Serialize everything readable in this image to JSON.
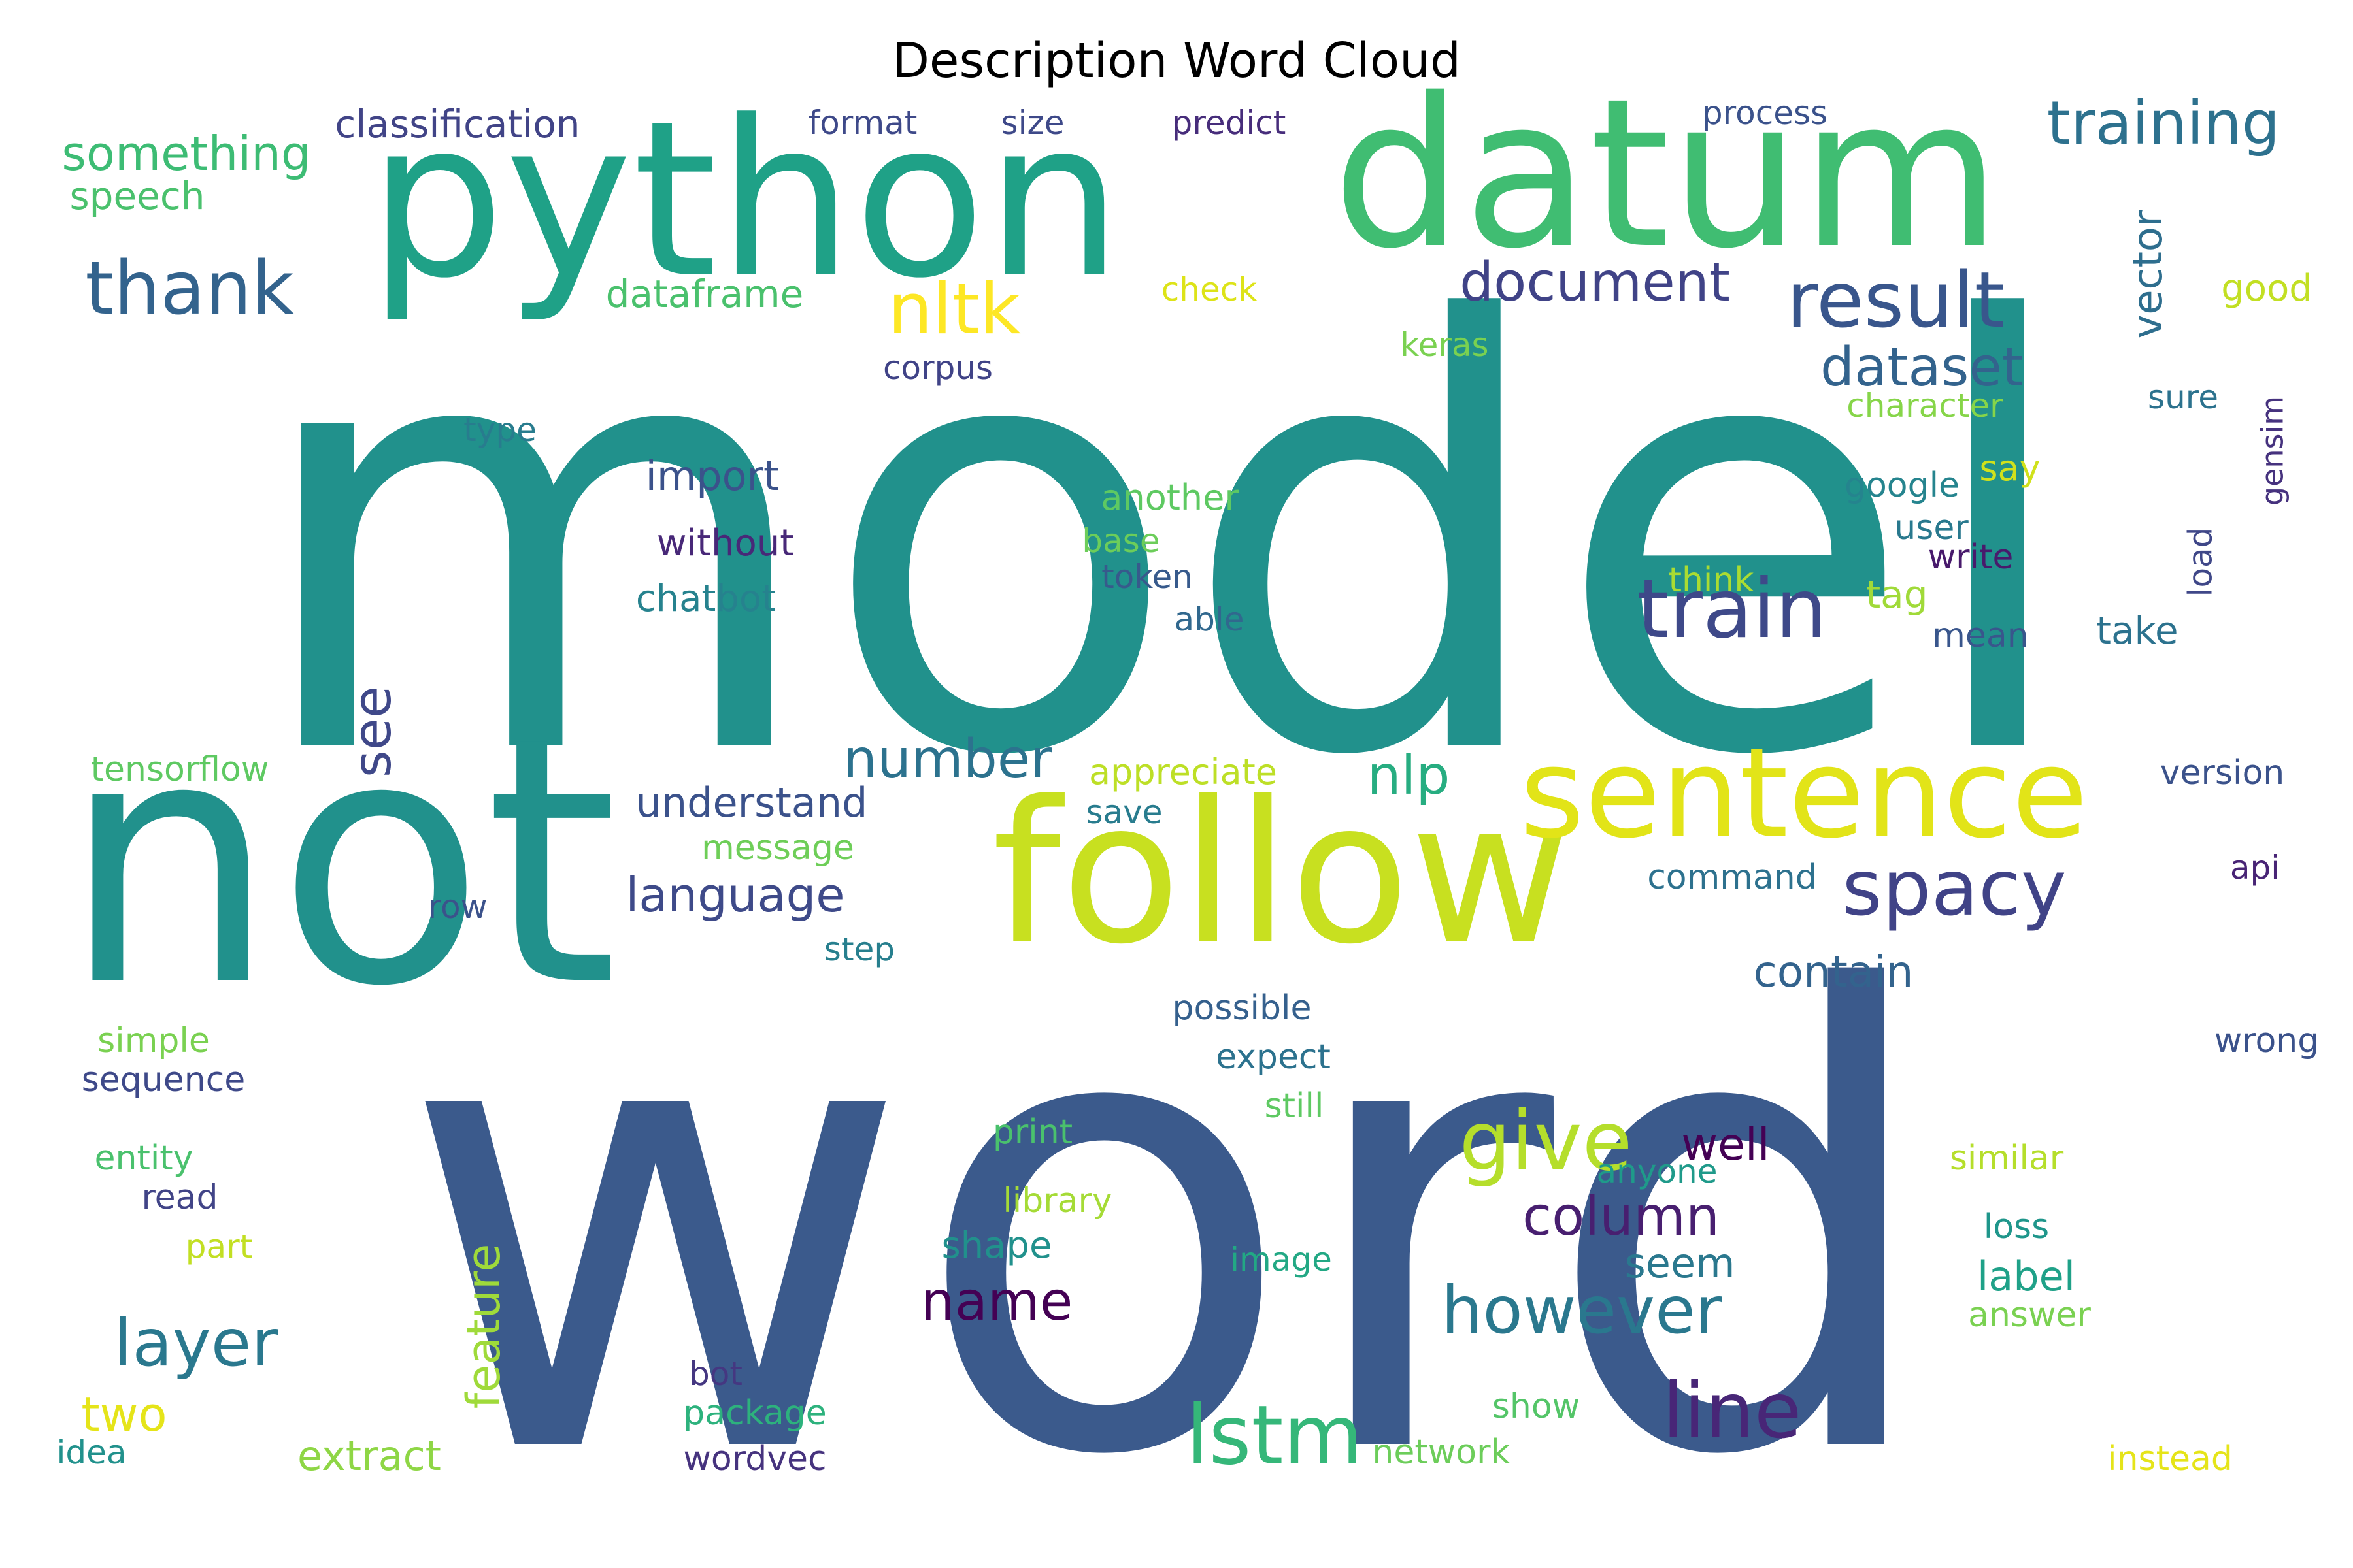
{
  "chart_data": {
    "type": "wordcloud",
    "title": "Description Word Cloud",
    "words": [
      {
        "text": "model",
        "weight": 100,
        "color": "#21918c"
      },
      {
        "text": "word",
        "weight": 100,
        "color": "#3b5a8c"
      },
      {
        "text": "not",
        "weight": 74,
        "color": "#21918c"
      },
      {
        "text": "python",
        "weight": 57,
        "color": "#1fa187"
      },
      {
        "text": "datum",
        "weight": 55,
        "color": "#40bd72"
      },
      {
        "text": "follow",
        "weight": 54,
        "color": "#c8e020"
      },
      {
        "text": "sentence",
        "weight": 34,
        "color": "#e2e418"
      },
      {
        "text": "thank",
        "weight": 18,
        "color": "#33638d"
      },
      {
        "text": "training",
        "weight": 14,
        "color": "#2d718e"
      },
      {
        "text": "result",
        "weight": 20,
        "color": "#39568c"
      },
      {
        "text": "nltk",
        "weight": 17,
        "color": "#fde725"
      },
      {
        "text": "document",
        "weight": 14,
        "color": "#404387"
      },
      {
        "text": "dataset",
        "weight": 15,
        "color": "#33638d"
      },
      {
        "text": "train",
        "weight": 22,
        "color": "#3e4989"
      },
      {
        "text": "spacy",
        "weight": 21,
        "color": "#404387"
      },
      {
        "text": "give",
        "weight": 22,
        "color": "#b5de2b"
      },
      {
        "text": "lstm",
        "weight": 22,
        "color": "#35b779"
      },
      {
        "text": "line",
        "weight": 21,
        "color": "#482677"
      },
      {
        "text": "however",
        "weight": 17,
        "color": "#2a788e"
      },
      {
        "text": "layer",
        "weight": 17,
        "color": "#2a788e"
      },
      {
        "text": "number",
        "weight": 14,
        "color": "#2c728e"
      },
      {
        "text": "column",
        "weight": 14,
        "color": "#481f70"
      },
      {
        "text": "name",
        "weight": 14,
        "color": "#440154"
      },
      {
        "text": "something",
        "weight": 11,
        "color": "#3dbc74"
      },
      {
        "text": "classification",
        "weight": 9,
        "color": "#414487"
      },
      {
        "text": "speech",
        "weight": 9,
        "color": "#4ac16d"
      },
      {
        "text": "dataframe",
        "weight": 9,
        "color": "#4ac16d"
      },
      {
        "text": "format",
        "weight": 8,
        "color": "#3e4989"
      },
      {
        "text": "size",
        "weight": 8,
        "color": "#3e4989"
      },
      {
        "text": "predict",
        "weight": 8,
        "color": "#472d7b"
      },
      {
        "text": "process",
        "weight": 8,
        "color": "#3b528b"
      },
      {
        "text": "check",
        "weight": 8,
        "color": "#dde318"
      },
      {
        "text": "keras",
        "weight": 8,
        "color": "#7ad151"
      },
      {
        "text": "corpus",
        "weight": 8,
        "color": "#404387"
      },
      {
        "text": "vector",
        "weight": 10,
        "color": "#2e6e8e"
      },
      {
        "text": "good",
        "weight": 9,
        "color": "#c2df23"
      },
      {
        "text": "character",
        "weight": 8,
        "color": "#86d549"
      },
      {
        "text": "sure",
        "weight": 8,
        "color": "#2c728e"
      },
      {
        "text": "gensim",
        "weight": 7,
        "color": "#46327e"
      },
      {
        "text": "type",
        "weight": 8,
        "color": "#287c8e"
      },
      {
        "text": "import",
        "weight": 10,
        "color": "#3b528b"
      },
      {
        "text": "without",
        "weight": 9,
        "color": "#482878"
      },
      {
        "text": "chatbot",
        "weight": 9,
        "color": "#26828e"
      },
      {
        "text": "another",
        "weight": 9,
        "color": "#5ec962"
      },
      {
        "text": "base",
        "weight": 8,
        "color": "#6ccd5a"
      },
      {
        "text": "token",
        "weight": 8,
        "color": "#375a8c"
      },
      {
        "text": "able",
        "weight": 8,
        "color": "#31688e"
      },
      {
        "text": "say",
        "weight": 9,
        "color": "#d0e11c"
      },
      {
        "text": "google",
        "weight": 8,
        "color": "#25848e"
      },
      {
        "text": "user",
        "weight": 8,
        "color": "#29798e"
      },
      {
        "text": "write",
        "weight": 8,
        "color": "#481a6c"
      },
      {
        "text": "think",
        "weight": 8,
        "color": "#aadc32"
      },
      {
        "text": "tag",
        "weight": 9,
        "color": "#a0da39"
      },
      {
        "text": "load",
        "weight": 8,
        "color": "#3f4788"
      },
      {
        "text": "mean",
        "weight": 8,
        "color": "#39568c"
      },
      {
        "text": "take",
        "weight": 9,
        "color": "#2c728e"
      },
      {
        "text": "see",
        "weight": 13,
        "color": "#3f4889"
      },
      {
        "text": "tensorflow",
        "weight": 8,
        "color": "#5ec962"
      },
      {
        "text": "understand",
        "weight": 10,
        "color": "#3b528b"
      },
      {
        "text": "appreciate",
        "weight": 9,
        "color": "#bddf26"
      },
      {
        "text": "nlp",
        "weight": 13,
        "color": "#27ad81"
      },
      {
        "text": "version",
        "weight": 8,
        "color": "#3b528b"
      },
      {
        "text": "save",
        "weight": 8,
        "color": "#287c8e"
      },
      {
        "text": "message",
        "weight": 8,
        "color": "#6ece58"
      },
      {
        "text": "language",
        "weight": 11,
        "color": "#3e4a89"
      },
      {
        "text": "row",
        "weight": 8,
        "color": "#3b528b"
      },
      {
        "text": "step",
        "weight": 8,
        "color": "#277f8e"
      },
      {
        "text": "command",
        "weight": 8,
        "color": "#2d718e"
      },
      {
        "text": "api",
        "weight": 8,
        "color": "#482475"
      },
      {
        "text": "contain",
        "weight": 10,
        "color": "#33638d"
      },
      {
        "text": "possible",
        "weight": 8,
        "color": "#35608d"
      },
      {
        "text": "simple",
        "weight": 8,
        "color": "#7ad151"
      },
      {
        "text": "expect",
        "weight": 8,
        "color": "#2c728e"
      },
      {
        "text": "wrong",
        "weight": 8,
        "color": "#3b528b"
      },
      {
        "text": "sequence",
        "weight": 8,
        "color": "#3e4989"
      },
      {
        "text": "still",
        "weight": 8,
        "color": "#5ec962"
      },
      {
        "text": "print",
        "weight": 8,
        "color": "#4ac16d"
      },
      {
        "text": "well",
        "weight": 11,
        "color": "#440154"
      },
      {
        "text": "anyone",
        "weight": 8,
        "color": "#1f9a8a"
      },
      {
        "text": "similar",
        "weight": 8,
        "color": "#b5de2b"
      },
      {
        "text": "entity",
        "weight": 8,
        "color": "#4ac16d"
      },
      {
        "text": "read",
        "weight": 8,
        "color": "#414487"
      },
      {
        "text": "library",
        "weight": 8,
        "color": "#a5db36"
      },
      {
        "text": "seem",
        "weight": 10,
        "color": "#2a788e"
      },
      {
        "text": "part",
        "weight": 8,
        "color": "#c2df23"
      },
      {
        "text": "shape",
        "weight": 9,
        "color": "#21918c"
      },
      {
        "text": "image",
        "weight": 8,
        "color": "#22a884"
      },
      {
        "text": "feature",
        "weight": 10,
        "color": "#9fda3a"
      },
      {
        "text": "loss",
        "weight": 8,
        "color": "#1f968b"
      },
      {
        "text": "label",
        "weight": 9,
        "color": "#1fa188"
      },
      {
        "text": "answer",
        "weight": 8,
        "color": "#7ad151"
      },
      {
        "text": "two",
        "weight": 12,
        "color": "#e5e419"
      },
      {
        "text": "bot",
        "weight": 8,
        "color": "#453781"
      },
      {
        "text": "show",
        "weight": 8,
        "color": "#54c568"
      },
      {
        "text": "package",
        "weight": 8,
        "color": "#2db27d"
      },
      {
        "text": "idea",
        "weight": 8,
        "color": "#21918c"
      },
      {
        "text": "extract",
        "weight": 9,
        "color": "#8ed645"
      },
      {
        "text": "wordvec",
        "weight": 8,
        "color": "#46337e"
      },
      {
        "text": "network",
        "weight": 8,
        "color": "#6ccd5a"
      },
      {
        "text": "instead",
        "weight": 8,
        "color": "#e5e419"
      }
    ]
  }
}
